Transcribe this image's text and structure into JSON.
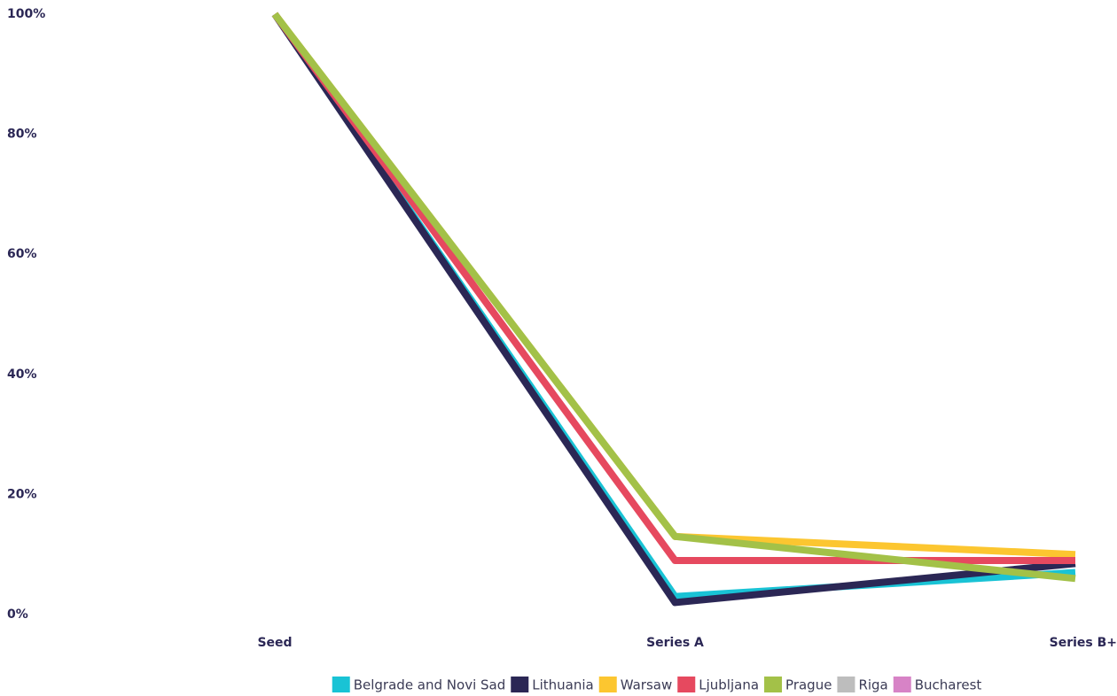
{
  "chart_data": {
    "type": "line",
    "categories": [
      "Seed",
      "Series A",
      "Series B+"
    ],
    "series": [
      {
        "name": "Belgrade and Novi Sad",
        "color": "#19c3d5",
        "values": [
          100,
          3,
          7
        ]
      },
      {
        "name": "Lithuania",
        "color": "#2b2755",
        "values": [
          100,
          2,
          8.5
        ]
      },
      {
        "name": "Warsaw",
        "color": "#fcc630",
        "values": [
          100,
          13,
          10
        ]
      },
      {
        "name": "Ljubljana",
        "color": "#e6495f",
        "values": [
          100,
          9,
          9
        ]
      },
      {
        "name": "Prague",
        "color": "#a3c148",
        "values": [
          100,
          13,
          6
        ]
      },
      {
        "name": "Riga",
        "color": "#bdbdbd",
        "values": [
          null,
          null,
          null
        ]
      },
      {
        "name": "Bucharest",
        "color": "#d783c6",
        "values": [
          null,
          null,
          null
        ]
      }
    ],
    "ylim": [
      0,
      100
    ],
    "yticks": [
      {
        "value": 0,
        "label": "0%"
      },
      {
        "value": 20,
        "label": "20%"
      },
      {
        "value": 40,
        "label": "40%"
      },
      {
        "value": 60,
        "label": "60%"
      },
      {
        "value": 80,
        "label": "80%"
      },
      {
        "value": 100,
        "label": "100%"
      }
    ],
    "grid": false,
    "legend": "bottom"
  }
}
